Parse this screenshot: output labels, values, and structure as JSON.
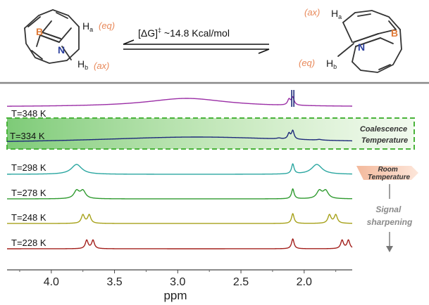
{
  "scheme": {
    "barrier_label": "[ΔG]",
    "barrier_sup": "‡",
    "barrier_value": " ~14.8 Kcal/mol",
    "left": {
      "boron": "B",
      "nitrogen": "N",
      "h_top": "H",
      "h_top_sub": "a",
      "h_top_tag": "(eq)",
      "h_bottom": "H",
      "h_bottom_sub": "b",
      "h_bottom_tag": "(ax)"
    },
    "right": {
      "boron": "B",
      "nitrogen": "N",
      "h_top": "H",
      "h_top_sub": "a",
      "h_top_tag": "(ax)",
      "h_bottom": "H",
      "h_bottom_sub": "b",
      "h_bottom_tag": "(eq)"
    }
  },
  "annotations": {
    "coalescence_line1": "Coalescence",
    "coalescence_line2": "Temperature",
    "room_line1": "Room",
    "room_line2": "Temperature",
    "sharpening_line1": "Signal",
    "sharpening_line2": "sharpening"
  },
  "colors": {
    "accent_orange": "#e8895a",
    "boron_orange": "#e07b39",
    "nitrogen_blue": "#2b3f9e",
    "highlight_green": "#5cc24a",
    "room_badge": "#f6c9b3"
  },
  "chart_data": {
    "type": "line",
    "xlabel": "ppm",
    "x_reversed": true,
    "xlim": [
      4.35,
      1.62
    ],
    "xticks": [
      "4.0",
      "3.5",
      "3.0",
      "2.5",
      "2.0"
    ],
    "xtick_values": [
      4.0,
      3.5,
      3.0,
      2.5,
      2.0
    ],
    "series": [
      {
        "name": "T=348 K",
        "color": "#9b2fa6",
        "baseline": 2.5,
        "height": 12,
        "peaks": [
          [
            2.93,
            0.39,
            12
          ],
          [
            2.09,
            0.013,
            11
          ],
          [
            2.12,
            0.013,
            8
          ]
        ]
      },
      {
        "name": "T=334 K",
        "color": "#1e2a7a",
        "baseline": 2.0,
        "height": 11,
        "peaks": [
          [
            2.85,
            1.0,
            9
          ],
          [
            2.09,
            0.012,
            12
          ],
          [
            2.12,
            0.012,
            8
          ],
          [
            2.2,
            0.02,
            1.2
          ],
          [
            1.88,
            0.02,
            1.0
          ]
        ]
      },
      {
        "name": "T=298 K",
        "color": "#2aa6a0",
        "baseline": 1.2,
        "height": 14,
        "peaks": [
          [
            3.8,
            0.05,
            14
          ],
          [
            2.09,
            0.012,
            14
          ],
          [
            1.9,
            0.05,
            14
          ]
        ]
      },
      {
        "name": "T=278 K",
        "color": "#2f9a2f",
        "baseline": 1.2,
        "height": 14,
        "peaks": [
          [
            3.8,
            0.025,
            11
          ],
          [
            3.75,
            0.025,
            11
          ],
          [
            2.09,
            0.012,
            14
          ],
          [
            1.88,
            0.025,
            11
          ],
          [
            1.83,
            0.025,
            11
          ]
        ]
      },
      {
        "name": "T=248 K",
        "color": "#a6a119",
        "baseline": 1.2,
        "height": 14,
        "peaks": [
          [
            3.75,
            0.015,
            12
          ],
          [
            3.7,
            0.015,
            12
          ],
          [
            2.09,
            0.012,
            14
          ],
          [
            1.8,
            0.015,
            12
          ],
          [
            1.75,
            0.015,
            12
          ]
        ]
      },
      {
        "name": "T=228 K",
        "color": "#a3201c",
        "baseline": 1.2,
        "height": 14,
        "peaks": [
          [
            3.72,
            0.013,
            12
          ],
          [
            3.67,
            0.013,
            12
          ],
          [
            2.09,
            0.012,
            14
          ],
          [
            1.7,
            0.013,
            12
          ],
          [
            1.65,
            0.013,
            12
          ]
        ]
      }
    ]
  }
}
